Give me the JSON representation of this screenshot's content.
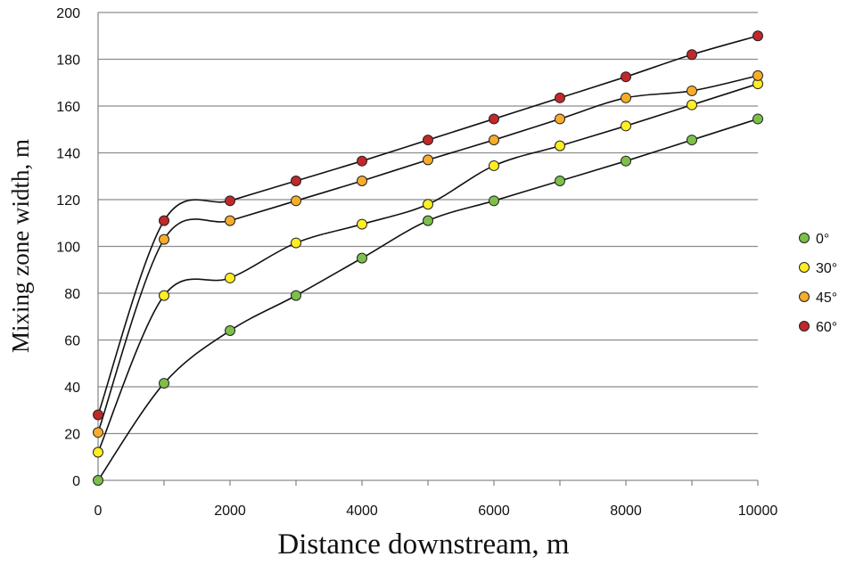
{
  "chart_data": {
    "type": "scatter",
    "title": "",
    "xlabel": "Distance downstream, m",
    "ylabel": "Mixing zone width, m",
    "xlim": [
      0,
      10000
    ],
    "ylim": [
      0,
      200
    ],
    "xticks": [
      0,
      2000,
      4000,
      6000,
      8000,
      10000
    ],
    "yticks": [
      0,
      20,
      40,
      60,
      80,
      100,
      120,
      140,
      160,
      180,
      200
    ],
    "xtick_labels": [
      "0",
      "2000",
      "4000",
      "6000",
      "8000",
      "10000"
    ],
    "ytick_labels": [
      "0",
      "20",
      "40",
      "60",
      "80",
      "100",
      "120",
      "140",
      "160",
      "180",
      "200"
    ],
    "grid": "horizontal",
    "legend_position": "right",
    "trendlines": "smooth curve per series",
    "x": [
      0,
      1000,
      2000,
      3000,
      4000,
      5000,
      6000,
      7000,
      8000,
      9000,
      10000
    ],
    "series": [
      {
        "name": "0°",
        "color": "#7cc04a",
        "values": [
          0,
          41.5,
          64,
          79,
          95,
          111,
          119.5,
          128,
          136.5,
          145.5,
          154.5
        ]
      },
      {
        "name": "30°",
        "color": "#ffee22",
        "values": [
          12,
          79,
          86.5,
          101.5,
          109.5,
          118,
          134.5,
          143,
          151.5,
          160.5,
          169.5
        ]
      },
      {
        "name": "45°",
        "color": "#f7ac2a",
        "values": [
          20.5,
          103,
          111,
          119.5,
          128,
          137,
          145.5,
          154.5,
          163.5,
          166.5,
          173
        ]
      },
      {
        "name": "60°",
        "color": "#c0282a",
        "values": [
          28,
          111,
          119.5,
          128,
          136.5,
          145.5,
          154.5,
          163.5,
          172.5,
          182,
          190
        ]
      }
    ]
  }
}
